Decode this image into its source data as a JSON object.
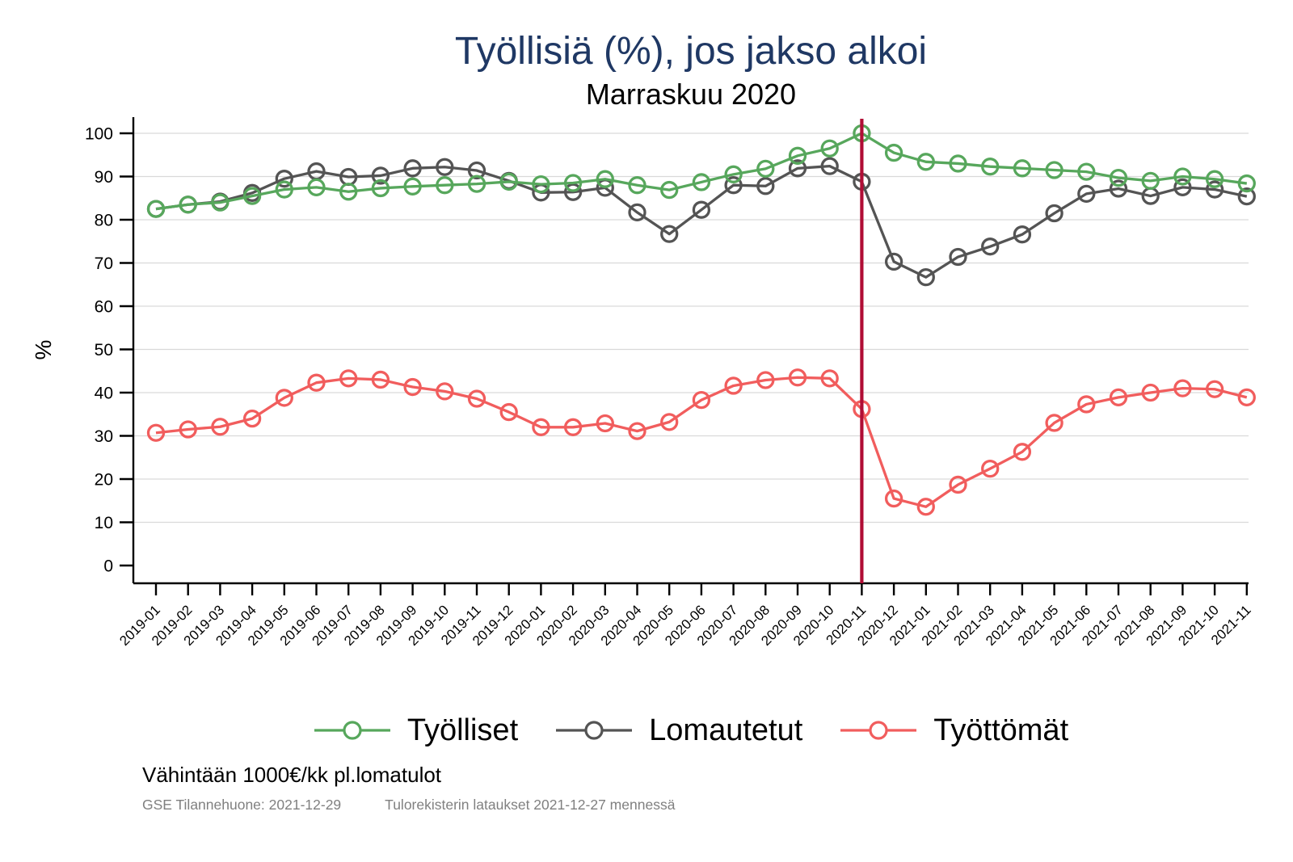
{
  "title": "Työllisiä (%), jos jakso alkoi",
  "subtitle": "Marraskuu 2020",
  "footnote": "Vähintään 1000€/kk pl.lomatulot",
  "source_left": "GSE Tilannehuone: 2021-12-29",
  "source_right": "Tulorekisterin lataukset 2021-12-27 mennessä",
  "colors": {
    "title": "#1f3864",
    "grid": "#d9d9d9",
    "axis": "#000000",
    "source_text": "#808080",
    "tyolliset_green": "#57a75c",
    "lomautetut_gray": "#545454",
    "tyottomat_red": "#f15d5d",
    "event_line_crimson": "#b00d35"
  },
  "chart_data": {
    "type": "line",
    "title": "Työllisiä (%), jos jakso alkoi",
    "subtitle": "Marraskuu 2020",
    "xlabel": "",
    "ylabel": "%",
    "ylim": [
      0,
      100
    ],
    "yticks": [
      0,
      10,
      20,
      30,
      40,
      50,
      60,
      70,
      80,
      90,
      100
    ],
    "grid": true,
    "legend_position": "bottom",
    "marker": "circle",
    "event_line": {
      "x": "2020-11",
      "color": "#b00d35"
    },
    "categories": [
      "2019-01",
      "2019-02",
      "2019-03",
      "2019-04",
      "2019-05",
      "2019-06",
      "2019-07",
      "2019-08",
      "2019-09",
      "2019-10",
      "2019-11",
      "2019-12",
      "2020-01",
      "2020-02",
      "2020-03",
      "2020-04",
      "2020-05",
      "2020-06",
      "2020-07",
      "2020-08",
      "2020-09",
      "2020-10",
      "2020-11",
      "2020-12",
      "2021-01",
      "2021-02",
      "2021-03",
      "2021-04",
      "2021-05",
      "2021-06",
      "2021-07",
      "2021-08",
      "2021-09",
      "2021-10",
      "2021-11"
    ],
    "series": [
      {
        "name": "Työlliset",
        "color": "#57a75c",
        "values": [
          82.5,
          83.5,
          84.0,
          85.5,
          87.0,
          87.5,
          86.5,
          87.3,
          87.7,
          88.0,
          88.3,
          88.8,
          88.2,
          88.5,
          89.4,
          88.0,
          86.9,
          88.7,
          90.5,
          91.8,
          94.8,
          96.5,
          100.0,
          95.5,
          93.4,
          93.0,
          92.3,
          91.9,
          91.5,
          91.1,
          89.7,
          89.0,
          90.0,
          89.4,
          88.4
        ]
      },
      {
        "name": "Lomautetut",
        "color": "#545454",
        "values": [
          82.5,
          83.5,
          84.2,
          86.2,
          89.5,
          91.2,
          89.9,
          90.2,
          91.9,
          92.2,
          91.4,
          89.0,
          86.3,
          86.4,
          87.4,
          81.7,
          76.7,
          82.3,
          88.0,
          87.8,
          91.9,
          92.4,
          88.8,
          70.3,
          66.7,
          71.4,
          73.8,
          76.6,
          81.5,
          86.0,
          87.2,
          85.5,
          87.5,
          87.0,
          85.4
        ]
      },
      {
        "name": "Työttömät",
        "color": "#f15d5d",
        "values": [
          30.7,
          31.5,
          32.1,
          34.0,
          38.8,
          42.3,
          43.3,
          43.0,
          41.3,
          40.3,
          38.6,
          35.5,
          32.0,
          32.0,
          32.9,
          31.1,
          33.2,
          38.3,
          41.6,
          42.9,
          43.5,
          43.3,
          36.2,
          15.5,
          13.6,
          18.7,
          22.4,
          26.3,
          33.0,
          37.3,
          38.9,
          40.0,
          41.0,
          40.8,
          38.9
        ]
      }
    ]
  }
}
